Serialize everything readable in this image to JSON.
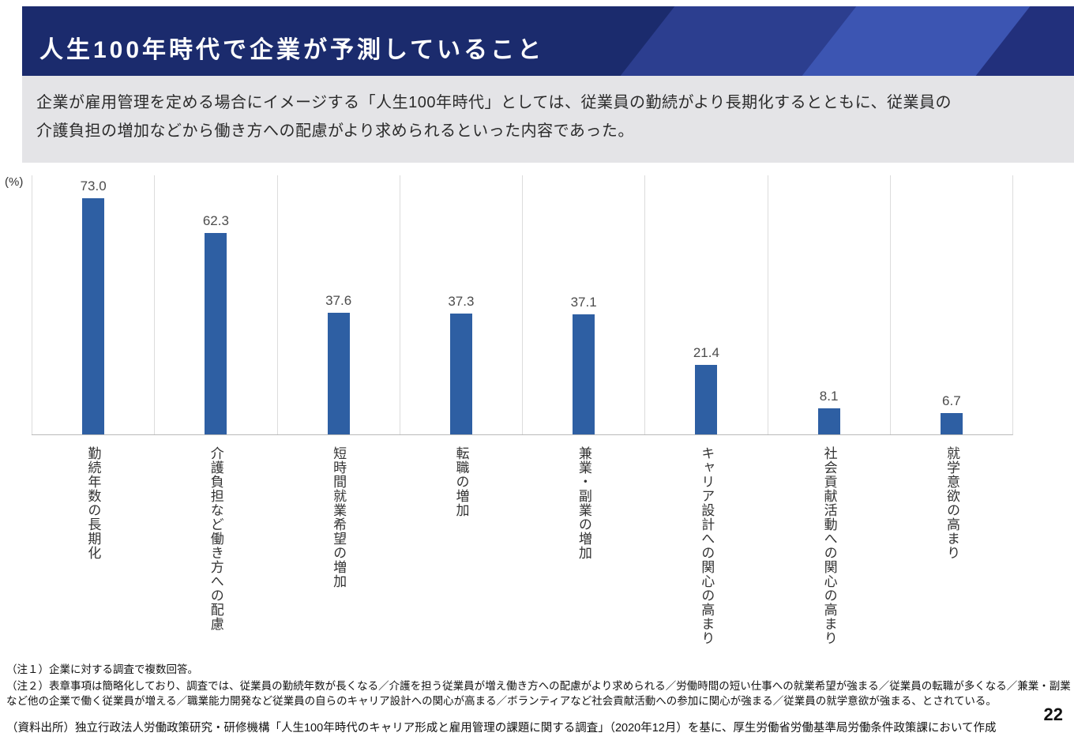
{
  "slide": {
    "title": "人生100年時代で企業が予測していること",
    "subtitle_lines": [
      "企業が雇用管理を定める場合にイメージする「人生100年時代」としては、従業員の勤続がより長期化するとともに、従業員の",
      "介護負担の増加などから働き方への配慮がより求められるといった内容であった。"
    ],
    "page_number": "22"
  },
  "chart_data": {
    "type": "bar",
    "unit_label": "(%)",
    "categories": [
      "勤続年数の長期化",
      "介護負担など働き方への配慮",
      "短時間就業希望の増加",
      "転職の増加",
      "兼業・副業の増加",
      "キャリア設計への関心の高まり",
      "社会貢献活動への関心の高まり",
      "就学意欲の高まり"
    ],
    "values": [
      73.0,
      62.3,
      37.6,
      37.3,
      37.1,
      21.4,
      8.1,
      6.7
    ],
    "value_labels": [
      "73.0",
      "62.3",
      "37.6",
      "37.3",
      "37.1",
      "21.4",
      "8.1",
      "6.7"
    ],
    "title": "人生100年時代で企業が予測していること",
    "xlabel": "",
    "ylabel": "(%)",
    "ylim": [
      0,
      80
    ],
    "grid": true,
    "legend": false,
    "bar_color": "#2e5fa3"
  },
  "notes": {
    "note1": "（注１）企業に対する調査で複数回答。",
    "note2": "（注２）表章事項は簡略化しており、調査では、従業員の勤続年数が長くなる／介護を担う従業員が増え働き方への配慮がより求められる／労働時間の短い仕事への就業希望が強まる／従業員の転職が多くなる／兼業・副業など他の企業で働く従業員が増える／職業能力開発など従業員の自らのキャリア設計への関心が高まる／ボランティアなど社会貢献活動への参加に関心が強まる／従業員の就学意欲が強まる、とされている。",
    "source": "（資料出所）独立行政法人労働政策研究・研修機構「人生100年時代のキャリア形成と雇用管理の課題に関する調査」（2020年12月）を基に、厚生労働省労働基準局労働条件政策課において作成"
  }
}
